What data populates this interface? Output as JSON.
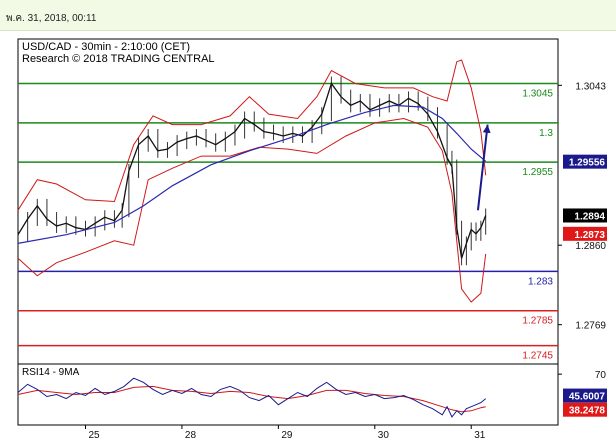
{
  "header": {
    "date": "พ.ค. 31, 2018, 00:11"
  },
  "chart_data": {
    "type": "candlestick",
    "title_line1": "USD/CAD - 30min - 2:10:00 (CET)",
    "title_line2": "Research © 2018 TRADING CENTRAL",
    "ylim": [
      1.2724,
      1.3096
    ],
    "y_ticks": [
      "1.3043",
      "1.2860",
      "1.2769"
    ],
    "x_ticks": [
      {
        "label": "25",
        "x": 0.7
      },
      {
        "label": "28",
        "x": 1.7
      },
      {
        "label": "29",
        "x": 2.7
      },
      {
        "label": "30",
        "x": 3.7
      },
      {
        "label": "31",
        "x": 4.7
      }
    ],
    "levels": [
      {
        "value": 1.3045,
        "label": "1.3045",
        "color": "#1a8a1a",
        "label_color": "#1a8a1a"
      },
      {
        "value": 1.3,
        "label": "1.3",
        "color": "#1a8a1a",
        "label_color": "#1a8a1a"
      },
      {
        "value": 1.2955,
        "label": "1.2955",
        "color": "#1a8a1a",
        "label_color": "#1a8a1a"
      },
      {
        "value": 1.283,
        "label": "1.283",
        "color": "#2222aa",
        "label_color": "#2222aa"
      },
      {
        "value": 1.2785,
        "label": "1.2785",
        "color": "#d82020",
        "label_color": "#d82020"
      },
      {
        "value": 1.2745,
        "label": "1.2745",
        "color": "#d82020",
        "label_color": "#d82020"
      }
    ],
    "price_badges": [
      {
        "value": 1.29556,
        "label": "1.29556",
        "bg": "#1a1a8c",
        "fg": "#ffffff"
      },
      {
        "value": 1.2894,
        "label": "1.2894",
        "bg": "#000000",
        "fg": "#ffffff"
      },
      {
        "value": 1.2873,
        "label": "1.2873",
        "bg": "#e01818",
        "fg": "#ffffff"
      }
    ],
    "arrow": {
      "from": [
        4.77,
        1.29
      ],
      "to": [
        4.87,
        1.2998
      ],
      "color": "#1a1a8c"
    },
    "series": {
      "close": [
        [
          0.0,
          1.2872
        ],
        [
          0.1,
          1.289
        ],
        [
          0.2,
          1.2905
        ],
        [
          0.3,
          1.289
        ],
        [
          0.4,
          1.2882
        ],
        [
          0.5,
          1.2885
        ],
        [
          0.6,
          1.288
        ],
        [
          0.7,
          1.2878
        ],
        [
          0.8,
          1.2885
        ],
        [
          0.9,
          1.2892
        ],
        [
          1.0,
          1.2888
        ],
        [
          1.08,
          1.29
        ],
        [
          1.15,
          1.2945
        ],
        [
          1.25,
          1.2975
        ],
        [
          1.35,
          1.2985
        ],
        [
          1.45,
          1.2968
        ],
        [
          1.55,
          1.297
        ],
        [
          1.65,
          1.2978
        ],
        [
          1.75,
          1.2982
        ],
        [
          1.85,
          1.2985
        ],
        [
          1.95,
          1.298
        ],
        [
          2.05,
          1.2975
        ],
        [
          2.15,
          1.2982
        ],
        [
          2.25,
          1.299
        ],
        [
          2.35,
          1.3005
        ],
        [
          2.45,
          1.2998
        ],
        [
          2.55,
          1.299
        ],
        [
          2.65,
          1.2988
        ],
        [
          2.75,
          1.2985
        ],
        [
          2.85,
          1.2988
        ],
        [
          2.95,
          1.2985
        ],
        [
          3.05,
          1.2995
        ],
        [
          3.15,
          1.301
        ],
        [
          3.25,
          1.3045
        ],
        [
          3.35,
          1.303
        ],
        [
          3.45,
          1.302
        ],
        [
          3.55,
          1.3025
        ],
        [
          3.65,
          1.3015
        ],
        [
          3.75,
          1.302
        ],
        [
          3.85,
          1.3025
        ],
        [
          3.95,
          1.302
        ],
        [
          4.05,
          1.3028
        ],
        [
          4.15,
          1.3022
        ],
        [
          4.25,
          1.301
        ],
        [
          4.35,
          1.299
        ],
        [
          4.45,
          1.296
        ],
        [
          4.5,
          1.295
        ],
        [
          4.55,
          1.288
        ],
        [
          4.6,
          1.2845
        ],
        [
          4.65,
          1.2862
        ],
        [
          4.7,
          1.2878
        ],
        [
          4.75,
          1.2873
        ],
        [
          4.8,
          1.288
        ],
        [
          4.85,
          1.2894
        ]
      ],
      "ma": [
        [
          0.0,
          1.2862
        ],
        [
          0.5,
          1.2872
        ],
        [
          1.0,
          1.2886
        ],
        [
          1.3,
          1.2905
        ],
        [
          1.6,
          1.2928
        ],
        [
          2.0,
          1.2952
        ],
        [
          2.4,
          1.2968
        ],
        [
          2.8,
          1.2982
        ],
        [
          3.2,
          1.2998
        ],
        [
          3.6,
          1.3012
        ],
        [
          3.9,
          1.302
        ],
        [
          4.2,
          1.3018
        ],
        [
          4.4,
          1.3005
        ],
        [
          4.55,
          1.2988
        ],
        [
          4.7,
          1.297
        ],
        [
          4.85,
          1.2956
        ]
      ],
      "bb_upper": [
        [
          0.0,
          1.29
        ],
        [
          0.2,
          1.2935
        ],
        [
          0.4,
          1.293
        ],
        [
          0.7,
          1.2912
        ],
        [
          1.0,
          1.291
        ],
        [
          1.2,
          1.2975
        ],
        [
          1.4,
          1.3008
        ],
        [
          1.6,
          1.2998
        ],
        [
          1.9,
          1.2998
        ],
        [
          2.2,
          1.3008
        ],
        [
          2.4,
          1.303
        ],
        [
          2.6,
          1.301
        ],
        [
          2.9,
          1.3005
        ],
        [
          3.1,
          1.303
        ],
        [
          3.25,
          1.306
        ],
        [
          3.5,
          1.3045
        ],
        [
          3.8,
          1.304
        ],
        [
          4.1,
          1.304
        ],
        [
          4.3,
          1.303
        ],
        [
          4.45,
          1.3025
        ],
        [
          4.55,
          1.307
        ],
        [
          4.6,
          1.3072
        ],
        [
          4.7,
          1.304
        ],
        [
          4.8,
          1.299
        ],
        [
          4.85,
          1.294
        ]
      ],
      "bb_lower": [
        [
          0.0,
          1.2845
        ],
        [
          0.2,
          1.2825
        ],
        [
          0.4,
          1.284
        ],
        [
          0.7,
          1.2852
        ],
        [
          1.0,
          1.2865
        ],
        [
          1.2,
          1.286
        ],
        [
          1.35,
          1.2935
        ],
        [
          1.6,
          1.2948
        ],
        [
          1.9,
          1.2962
        ],
        [
          2.2,
          1.2962
        ],
        [
          2.5,
          1.2972
        ],
        [
          2.8,
          1.297
        ],
        [
          3.1,
          1.2965
        ],
        [
          3.4,
          1.2985
        ],
        [
          3.7,
          1.3
        ],
        [
          4.0,
          1.3005
        ],
        [
          4.25,
          1.2995
        ],
        [
          4.4,
          1.2968
        ],
        [
          4.5,
          1.292
        ],
        [
          4.6,
          1.281
        ],
        [
          4.7,
          1.2795
        ],
        [
          4.8,
          1.2805
        ],
        [
          4.85,
          1.285
        ]
      ]
    },
    "rsi": {
      "title": "RSI14 - 9MA",
      "ylim": [
        20,
        80
      ],
      "tick": "70",
      "value_badge": {
        "label": "45.6007",
        "bg": "#1a1a8c",
        "fg": "#ffffff"
      },
      "ma_badge": {
        "label": "38.2478",
        "bg": "#e01818",
        "fg": "#ffffff"
      },
      "rsi": [
        [
          0.0,
          52
        ],
        [
          0.1,
          60
        ],
        [
          0.2,
          55
        ],
        [
          0.3,
          48
        ],
        [
          0.4,
          50
        ],
        [
          0.5,
          46
        ],
        [
          0.6,
          52
        ],
        [
          0.7,
          49
        ],
        [
          0.8,
          56
        ],
        [
          0.9,
          50
        ],
        [
          1.0,
          53
        ],
        [
          1.1,
          58
        ],
        [
          1.2,
          66
        ],
        [
          1.3,
          62
        ],
        [
          1.4,
          55
        ],
        [
          1.5,
          50
        ],
        [
          1.6,
          54
        ],
        [
          1.7,
          51
        ],
        [
          1.8,
          56
        ],
        [
          1.9,
          50
        ],
        [
          2.0,
          48
        ],
        [
          2.1,
          55
        ],
        [
          2.2,
          58
        ],
        [
          2.3,
          54
        ],
        [
          2.4,
          47
        ],
        [
          2.5,
          44
        ],
        [
          2.6,
          49
        ],
        [
          2.7,
          40
        ],
        [
          2.8,
          46
        ],
        [
          2.9,
          52
        ],
        [
          3.0,
          48
        ],
        [
          3.1,
          56
        ],
        [
          3.2,
          62
        ],
        [
          3.3,
          55
        ],
        [
          3.4,
          50
        ],
        [
          3.5,
          52
        ],
        [
          3.6,
          48
        ],
        [
          3.7,
          50
        ],
        [
          3.8,
          46
        ],
        [
          3.9,
          47
        ],
        [
          4.0,
          49
        ],
        [
          4.1,
          45
        ],
        [
          4.2,
          40
        ],
        [
          4.3,
          36
        ],
        [
          4.4,
          30
        ],
        [
          4.45,
          38
        ],
        [
          4.5,
          28
        ],
        [
          4.55,
          34
        ],
        [
          4.6,
          30
        ],
        [
          4.65,
          36
        ],
        [
          4.7,
          38
        ],
        [
          4.75,
          40
        ],
        [
          4.8,
          42
        ],
        [
          4.85,
          46
        ]
      ],
      "ma": [
        [
          0.0,
          50
        ],
        [
          0.2,
          54
        ],
        [
          0.4,
          52
        ],
        [
          0.6,
          50
        ],
        [
          0.8,
          52
        ],
        [
          1.0,
          52
        ],
        [
          1.2,
          57
        ],
        [
          1.4,
          58
        ],
        [
          1.6,
          54
        ],
        [
          1.8,
          53
        ],
        [
          2.0,
          51
        ],
        [
          2.2,
          53
        ],
        [
          2.4,
          52
        ],
        [
          2.6,
          48
        ],
        [
          2.8,
          46
        ],
        [
          3.0,
          49
        ],
        [
          3.2,
          54
        ],
        [
          3.4,
          54
        ],
        [
          3.6,
          51
        ],
        [
          3.8,
          49
        ],
        [
          4.0,
          48
        ],
        [
          4.2,
          44
        ],
        [
          4.4,
          38
        ],
        [
          4.5,
          35
        ],
        [
          4.6,
          33
        ],
        [
          4.7,
          34
        ],
        [
          4.8,
          37
        ],
        [
          4.85,
          38
        ]
      ]
    }
  }
}
